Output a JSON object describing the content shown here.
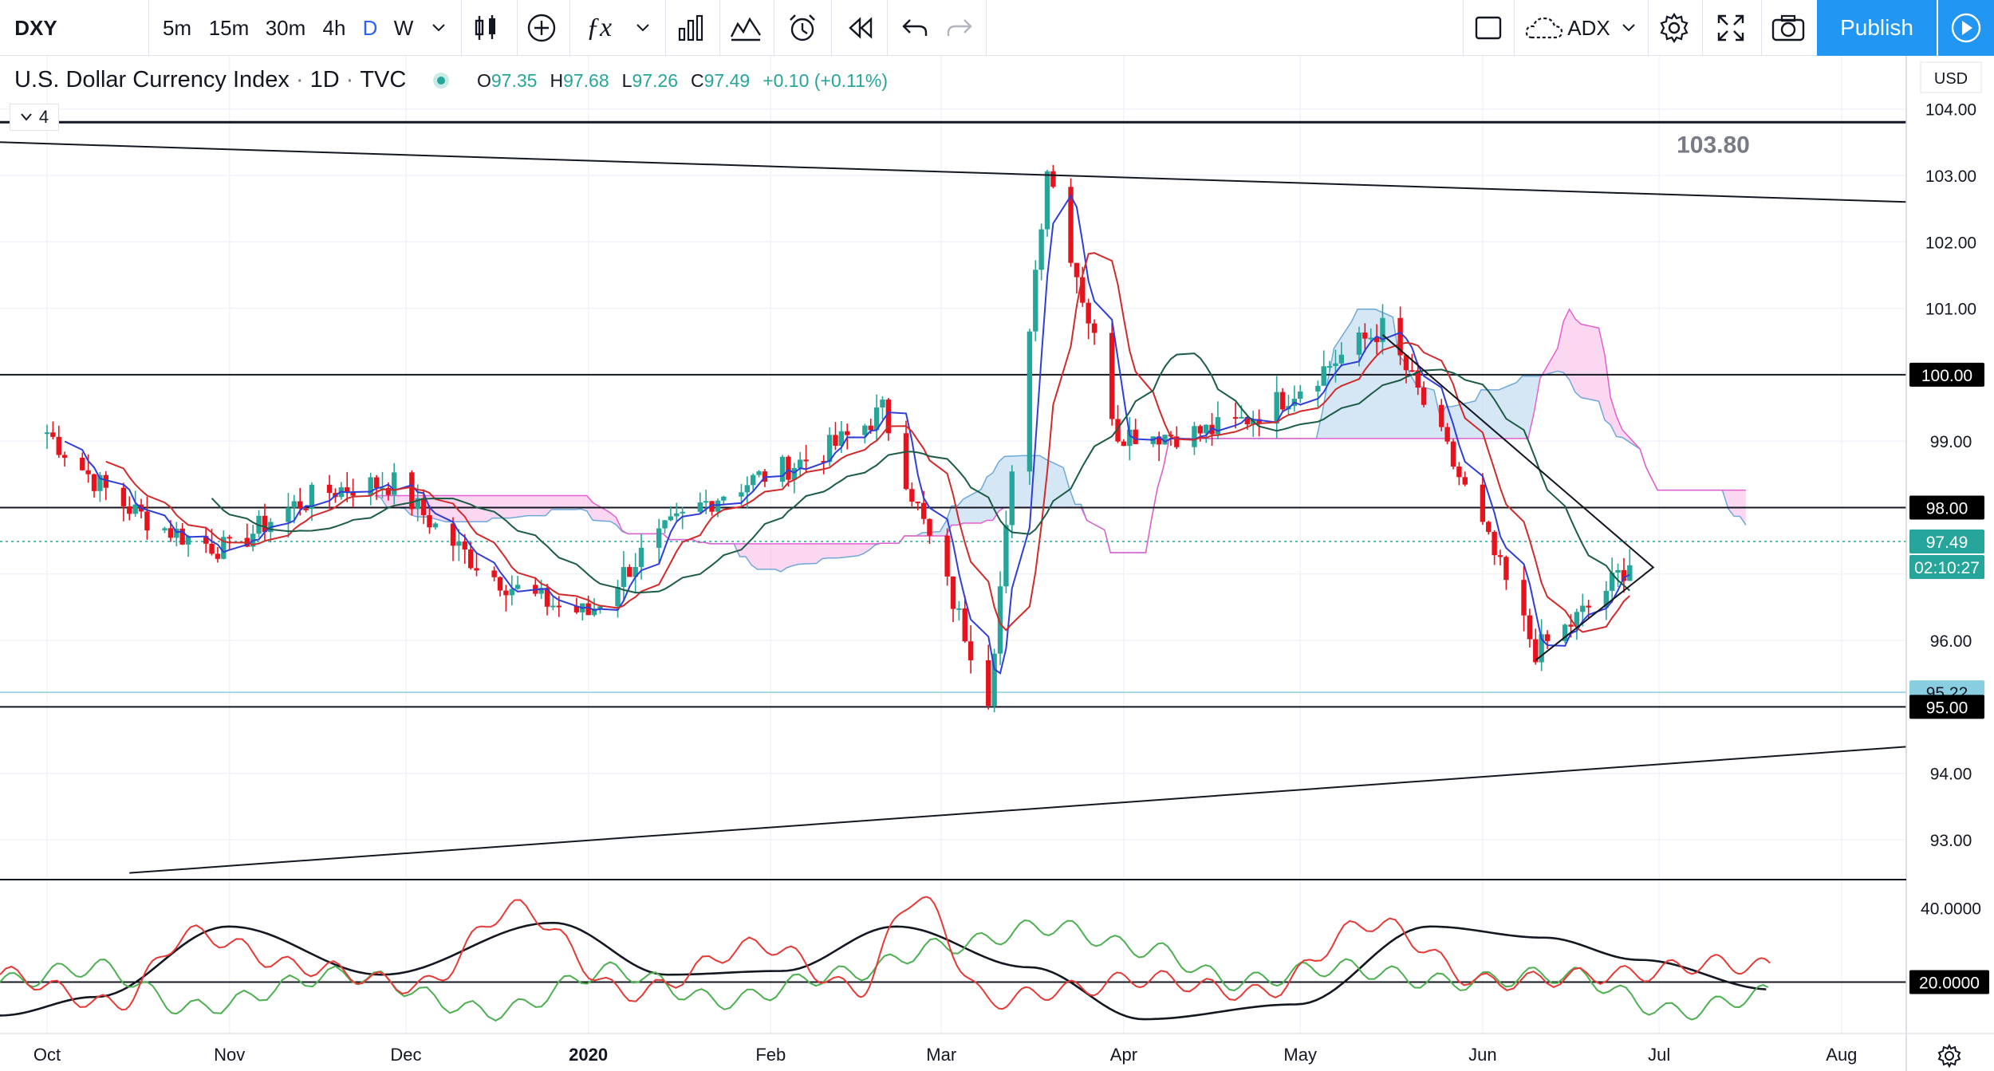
{
  "toolbar": {
    "symbol": "DXY",
    "intervals": [
      "5m",
      "15m",
      "30m",
      "4h",
      "D",
      "W"
    ],
    "active_interval": "D",
    "indicator_label": "ADX",
    "publish_label": "Publish",
    "icons": [
      "dropdown-icon",
      "candles-icon",
      "add-compare-icon",
      "indicators-icon",
      "dropdown-icon",
      "financials-icon",
      "templates-icon",
      "alert-icon",
      "replay-icon",
      "undo-icon",
      "redo-icon",
      "layout-icon",
      "cloud-icon",
      "settings-icon",
      "fullscreen-icon",
      "camera-icon",
      "play-icon"
    ]
  },
  "legend": {
    "title": "U.S. Dollar Currency Index",
    "interval": "1D",
    "exchange": "TVC",
    "open_label": "O",
    "open": "97.35",
    "high_label": "H",
    "high": "97.68",
    "low_label": "L",
    "low": "97.26",
    "close_label": "C",
    "close": "97.49",
    "change": "+0.10 (+0.11%)",
    "collapse_count": "4"
  },
  "colors": {
    "up": "#26a69a",
    "down": "#e8121d",
    "cloud_bull": "#b3d4ec",
    "cloud_bear": "#f7b6e6",
    "accent": "#2196f3",
    "tenkan": "#2f3ed8",
    "kijun": "#d12a2a",
    "base": "#1c5c46"
  },
  "chart_data": [
    {
      "type": "candlestick",
      "title": "U.S. Dollar Currency Index · 1D · TVC",
      "currency": "USD",
      "y_ticks": [
        "104.00",
        "103.00",
        "102.00",
        "101.00",
        "99.00",
        "96.00",
        "94.00",
        "93.00"
      ],
      "ylim": [
        92.4,
        104.8
      ],
      "x_ticks": [
        "Oct",
        "Nov",
        "Dec",
        "2020",
        "Feb",
        "Mar",
        "Apr",
        "May",
        "Jun",
        "Jul",
        "Aug"
      ],
      "price_labels": [
        {
          "value": 100.0,
          "text": "100.00"
        },
        {
          "value": 98.0,
          "text": "98.00"
        },
        {
          "value": 97.49,
          "text": "97.49"
        },
        {
          "value": 95.22,
          "text": "95.22"
        },
        {
          "value": 95.0,
          "text": "95.00"
        }
      ],
      "countdown": "02:10:27",
      "annotation": "103.80",
      "horizontal_levels": [
        103.8,
        100.0,
        98.0,
        95.0
      ],
      "trendlines": [
        {
          "from": [
            "2019-09-23",
            103.5
          ],
          "to": [
            "2020-08-12",
            102.6
          ]
        },
        {
          "from": [
            "2019-10-15",
            92.5
          ],
          "to": [
            "2020-08-12",
            94.4
          ]
        }
      ],
      "triangle": {
        "top": [
          "2020-05-15",
          100.6
        ],
        "bottom": [
          "2020-06-10",
          95.7
        ],
        "apex": [
          "2020-06-30",
          97.1
        ]
      },
      "key_points": [
        {
          "date": "2019-10-01",
          "close": 99.2
        },
        {
          "date": "2019-11-01",
          "close": 97.3
        },
        {
          "date": "2019-11-29",
          "close": 98.3
        },
        {
          "date": "2020-01-01",
          "close": 96.4
        },
        {
          "date": "2020-02-20",
          "close": 99.8
        },
        {
          "date": "2020-03-09",
          "close": 95.0
        },
        {
          "date": "2020-03-19",
          "close": 102.8
        },
        {
          "date": "2020-03-31",
          "close": 99.0
        },
        {
          "date": "2020-05-15",
          "close": 100.4
        },
        {
          "date": "2020-06-10",
          "close": 96.0
        },
        {
          "date": "2020-06-26",
          "close": 97.49
        }
      ]
    },
    {
      "type": "line",
      "title": "ADX",
      "y_ticks": [
        "40.0000",
        "20.0000"
      ],
      "level_line": 20.0,
      "ylim": [
        7,
        47
      ],
      "series": [
        {
          "role": "adx",
          "points": [
            [
              0,
              11
            ],
            [
              0.05,
              16
            ],
            [
              0.12,
              35
            ],
            [
              0.2,
              22
            ],
            [
              0.29,
              36
            ],
            [
              0.35,
              22
            ],
            [
              0.41,
              23
            ],
            [
              0.47,
              35
            ],
            [
              0.54,
              24
            ],
            [
              0.6,
              10
            ],
            [
              0.68,
              14
            ],
            [
              0.75,
              35
            ],
            [
              0.81,
              32
            ],
            [
              0.86,
              26
            ],
            [
              0.93,
              18
            ]
          ]
        },
        {
          "role": "plus_di",
          "points": [
            [
              0,
              20
            ],
            [
              0.05,
              24
            ],
            [
              0.1,
              13
            ],
            [
              0.18,
              22
            ],
            [
              0.26,
              12
            ],
            [
              0.32,
              23
            ],
            [
              0.38,
              15
            ],
            [
              0.44,
              22
            ],
            [
              0.5,
              30
            ],
            [
              0.55,
              35
            ],
            [
              0.6,
              29
            ],
            [
              0.65,
              20
            ],
            [
              0.7,
              24
            ],
            [
              0.76,
              20
            ],
            [
              0.82,
              22
            ],
            [
              0.88,
              12
            ],
            [
              0.93,
              17
            ]
          ]
        },
        {
          "role": "minus_di",
          "points": [
            [
              0,
              22
            ],
            [
              0.06,
              14
            ],
            [
              0.1,
              33
            ],
            [
              0.16,
              24
            ],
            [
              0.22,
              19
            ],
            [
              0.27,
              40
            ],
            [
              0.33,
              17
            ],
            [
              0.4,
              30
            ],
            [
              0.45,
              18
            ],
            [
              0.48,
              43
            ],
            [
              0.52,
              15
            ],
            [
              0.56,
              18
            ],
            [
              0.6,
              21
            ],
            [
              0.66,
              17
            ],
            [
              0.72,
              36
            ],
            [
              0.78,
              20
            ],
            [
              0.85,
              22
            ],
            [
              0.9,
              25
            ],
            [
              0.93,
              24
            ]
          ]
        }
      ]
    }
  ]
}
